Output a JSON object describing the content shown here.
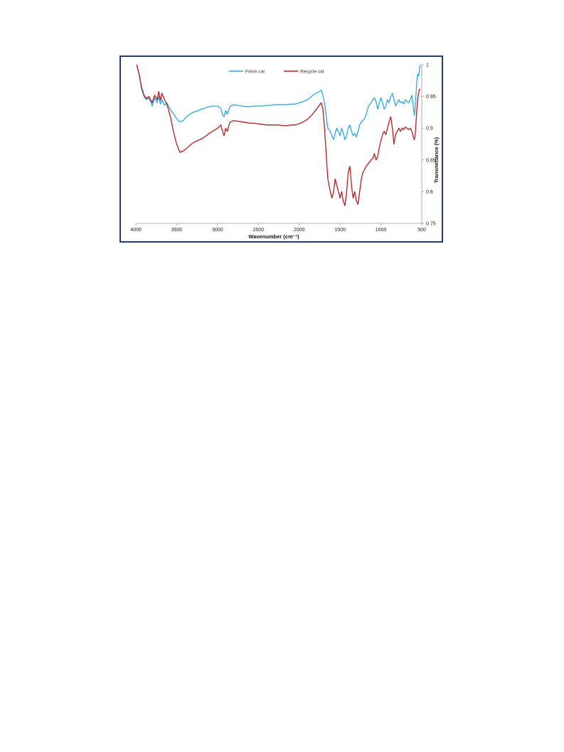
{
  "chart_data": {
    "type": "line",
    "xlabel": "Wavenumber (cm⁻¹)",
    "ylabel": "Transmittance (%)",
    "xlim": [
      4000,
      500
    ],
    "ylim": [
      0.75,
      1
    ],
    "x_ticks": [
      4000,
      3500,
      3000,
      2500,
      2000,
      1500,
      1000,
      500
    ],
    "y_ticks": [
      0.75,
      0.8,
      0.85,
      0.9,
      0.95,
      1
    ],
    "y_tick_labels": [
      "0.75",
      "0.8",
      "0.85",
      "0.9",
      "0.95",
      "1"
    ],
    "grid": false,
    "legend_position": "top",
    "series": [
      {
        "name": "Fresh cat",
        "color": "#29a9e0",
        "points": [
          [
            3990,
            1.0
          ],
          [
            3960,
            0.985
          ],
          [
            3930,
            0.962
          ],
          [
            3900,
            0.95
          ],
          [
            3870,
            0.945
          ],
          [
            3840,
            0.948
          ],
          [
            3800,
            0.935
          ],
          [
            3770,
            0.948
          ],
          [
            3740,
            0.94
          ],
          [
            3720,
            0.95
          ],
          [
            3700,
            0.938
          ],
          [
            3680,
            0.945
          ],
          [
            3650,
            0.936
          ],
          [
            3620,
            0.94
          ],
          [
            3580,
            0.93
          ],
          [
            3540,
            0.923
          ],
          [
            3500,
            0.915
          ],
          [
            3460,
            0.91
          ],
          [
            3420,
            0.912
          ],
          [
            3380,
            0.918
          ],
          [
            3340,
            0.922
          ],
          [
            3300,
            0.925
          ],
          [
            3250,
            0.927
          ],
          [
            3200,
            0.93
          ],
          [
            3150,
            0.932
          ],
          [
            3100,
            0.934
          ],
          [
            3050,
            0.935
          ],
          [
            3000,
            0.935
          ],
          [
            2960,
            0.931
          ],
          [
            2940,
            0.922
          ],
          [
            2920,
            0.918
          ],
          [
            2900,
            0.928
          ],
          [
            2880,
            0.922
          ],
          [
            2860,
            0.93
          ],
          [
            2840,
            0.935
          ],
          [
            2800,
            0.937
          ],
          [
            2750,
            0.936
          ],
          [
            2700,
            0.935
          ],
          [
            2650,
            0.934
          ],
          [
            2600,
            0.934
          ],
          [
            2550,
            0.935
          ],
          [
            2500,
            0.935
          ],
          [
            2450,
            0.935
          ],
          [
            2400,
            0.936
          ],
          [
            2350,
            0.936
          ],
          [
            2300,
            0.937
          ],
          [
            2250,
            0.937
          ],
          [
            2200,
            0.937
          ],
          [
            2150,
            0.937
          ],
          [
            2100,
            0.938
          ],
          [
            2050,
            0.938
          ],
          [
            2000,
            0.94
          ],
          [
            1950,
            0.942
          ],
          [
            1900,
            0.945
          ],
          [
            1850,
            0.95
          ],
          [
            1800,
            0.955
          ],
          [
            1760,
            0.957
          ],
          [
            1730,
            0.96
          ],
          [
            1710,
            0.952
          ],
          [
            1690,
            0.94
          ],
          [
            1670,
            0.92
          ],
          [
            1650,
            0.9
          ],
          [
            1620,
            0.895
          ],
          [
            1600,
            0.888
          ],
          [
            1580,
            0.882
          ],
          [
            1560,
            0.892
          ],
          [
            1540,
            0.9
          ],
          [
            1520,
            0.895
          ],
          [
            1500,
            0.888
          ],
          [
            1480,
            0.9
          ],
          [
            1460,
            0.892
          ],
          [
            1440,
            0.882
          ],
          [
            1420,
            0.888
          ],
          [
            1400,
            0.9
          ],
          [
            1380,
            0.905
          ],
          [
            1360,
            0.895
          ],
          [
            1340,
            0.888
          ],
          [
            1320,
            0.892
          ],
          [
            1300,
            0.886
          ],
          [
            1280,
            0.895
          ],
          [
            1260,
            0.905
          ],
          [
            1240,
            0.91
          ],
          [
            1220,
            0.912
          ],
          [
            1200,
            0.915
          ],
          [
            1180,
            0.922
          ],
          [
            1150,
            0.935
          ],
          [
            1120,
            0.94
          ],
          [
            1100,
            0.945
          ],
          [
            1080,
            0.948
          ],
          [
            1060,
            0.942
          ],
          [
            1040,
            0.93
          ],
          [
            1020,
            0.94
          ],
          [
            1000,
            0.948
          ],
          [
            980,
            0.94
          ],
          [
            960,
            0.93
          ],
          [
            940,
            0.935
          ],
          [
            920,
            0.945
          ],
          [
            900,
            0.94
          ],
          [
            880,
            0.95
          ],
          [
            860,
            0.955
          ],
          [
            840,
            0.946
          ],
          [
            820,
            0.935
          ],
          [
            800,
            0.94
          ],
          [
            780,
            0.945
          ],
          [
            760,
            0.94
          ],
          [
            740,
            0.942
          ],
          [
            720,
            0.938
          ],
          [
            700,
            0.945
          ],
          [
            680,
            0.942
          ],
          [
            660,
            0.94
          ],
          [
            640,
            0.945
          ],
          [
            620,
            0.952
          ],
          [
            600,
            0.93
          ],
          [
            590,
            0.92
          ],
          [
            580,
            0.935
          ],
          [
            570,
            0.955
          ],
          [
            560,
            0.975
          ],
          [
            550,
            0.985
          ],
          [
            540,
            0.982
          ],
          [
            530,
            0.99
          ],
          [
            520,
            1.0
          ]
        ]
      },
      {
        "name": "Recycle cat",
        "color": "#b91c1c",
        "points": [
          [
            3990,
            1.0
          ],
          [
            3960,
            0.985
          ],
          [
            3930,
            0.965
          ],
          [
            3900,
            0.952
          ],
          [
            3870,
            0.947
          ],
          [
            3840,
            0.95
          ],
          [
            3800,
            0.94
          ],
          [
            3770,
            0.952
          ],
          [
            3740,
            0.945
          ],
          [
            3720,
            0.958
          ],
          [
            3700,
            0.944
          ],
          [
            3680,
            0.955
          ],
          [
            3650,
            0.945
          ],
          [
            3620,
            0.938
          ],
          [
            3580,
            0.92
          ],
          [
            3540,
            0.895
          ],
          [
            3500,
            0.875
          ],
          [
            3460,
            0.862
          ],
          [
            3420,
            0.864
          ],
          [
            3380,
            0.868
          ],
          [
            3340,
            0.873
          ],
          [
            3300,
            0.877
          ],
          [
            3250,
            0.88
          ],
          [
            3200,
            0.883
          ],
          [
            3150,
            0.887
          ],
          [
            3100,
            0.892
          ],
          [
            3050,
            0.896
          ],
          [
            3000,
            0.9
          ],
          [
            2960,
            0.905
          ],
          [
            2940,
            0.896
          ],
          [
            2920,
            0.888
          ],
          [
            2900,
            0.9
          ],
          [
            2880,
            0.895
          ],
          [
            2860,
            0.905
          ],
          [
            2840,
            0.91
          ],
          [
            2800,
            0.912
          ],
          [
            2750,
            0.911
          ],
          [
            2700,
            0.91
          ],
          [
            2650,
            0.909
          ],
          [
            2600,
            0.908
          ],
          [
            2550,
            0.908
          ],
          [
            2500,
            0.907
          ],
          [
            2450,
            0.906
          ],
          [
            2400,
            0.905
          ],
          [
            2350,
            0.905
          ],
          [
            2300,
            0.905
          ],
          [
            2250,
            0.905
          ],
          [
            2200,
            0.904
          ],
          [
            2150,
            0.904
          ],
          [
            2100,
            0.905
          ],
          [
            2050,
            0.905
          ],
          [
            2000,
            0.907
          ],
          [
            1950,
            0.91
          ],
          [
            1900,
            0.914
          ],
          [
            1850,
            0.92
          ],
          [
            1800,
            0.928
          ],
          [
            1760,
            0.935
          ],
          [
            1730,
            0.94
          ],
          [
            1710,
            0.93
          ],
          [
            1690,
            0.9
          ],
          [
            1670,
            0.86
          ],
          [
            1650,
            0.82
          ],
          [
            1620,
            0.8
          ],
          [
            1600,
            0.79
          ],
          [
            1580,
            0.8
          ],
          [
            1560,
            0.82
          ],
          [
            1540,
            0.81
          ],
          [
            1520,
            0.8
          ],
          [
            1500,
            0.79
          ],
          [
            1480,
            0.8
          ],
          [
            1460,
            0.785
          ],
          [
            1440,
            0.778
          ],
          [
            1420,
            0.8
          ],
          [
            1400,
            0.83
          ],
          [
            1380,
            0.84
          ],
          [
            1360,
            0.81
          ],
          [
            1340,
            0.79
          ],
          [
            1320,
            0.8
          ],
          [
            1300,
            0.785
          ],
          [
            1280,
            0.78
          ],
          [
            1260,
            0.8
          ],
          [
            1240,
            0.82
          ],
          [
            1220,
            0.83
          ],
          [
            1200,
            0.835
          ],
          [
            1180,
            0.84
          ],
          [
            1150,
            0.845
          ],
          [
            1120,
            0.85
          ],
          [
            1100,
            0.852
          ],
          [
            1080,
            0.86
          ],
          [
            1060,
            0.85
          ],
          [
            1040,
            0.855
          ],
          [
            1020,
            0.87
          ],
          [
            1000,
            0.88
          ],
          [
            980,
            0.89
          ],
          [
            960,
            0.895
          ],
          [
            940,
            0.89
          ],
          [
            920,
            0.9
          ],
          [
            900,
            0.91
          ],
          [
            880,
            0.918
          ],
          [
            860,
            0.9
          ],
          [
            840,
            0.875
          ],
          [
            820,
            0.89
          ],
          [
            800,
            0.895
          ],
          [
            780,
            0.9
          ],
          [
            760,
            0.895
          ],
          [
            740,
            0.9
          ],
          [
            720,
            0.898
          ],
          [
            700,
            0.902
          ],
          [
            680,
            0.9
          ],
          [
            660,
            0.898
          ],
          [
            640,
            0.9
          ],
          [
            620,
            0.895
          ],
          [
            600,
            0.885
          ],
          [
            590,
            0.882
          ],
          [
            580,
            0.89
          ],
          [
            570,
            0.91
          ],
          [
            560,
            0.93
          ],
          [
            550,
            0.945
          ],
          [
            540,
            0.955
          ],
          [
            530,
            0.96
          ],
          [
            520,
            0.962
          ]
        ]
      }
    ]
  }
}
